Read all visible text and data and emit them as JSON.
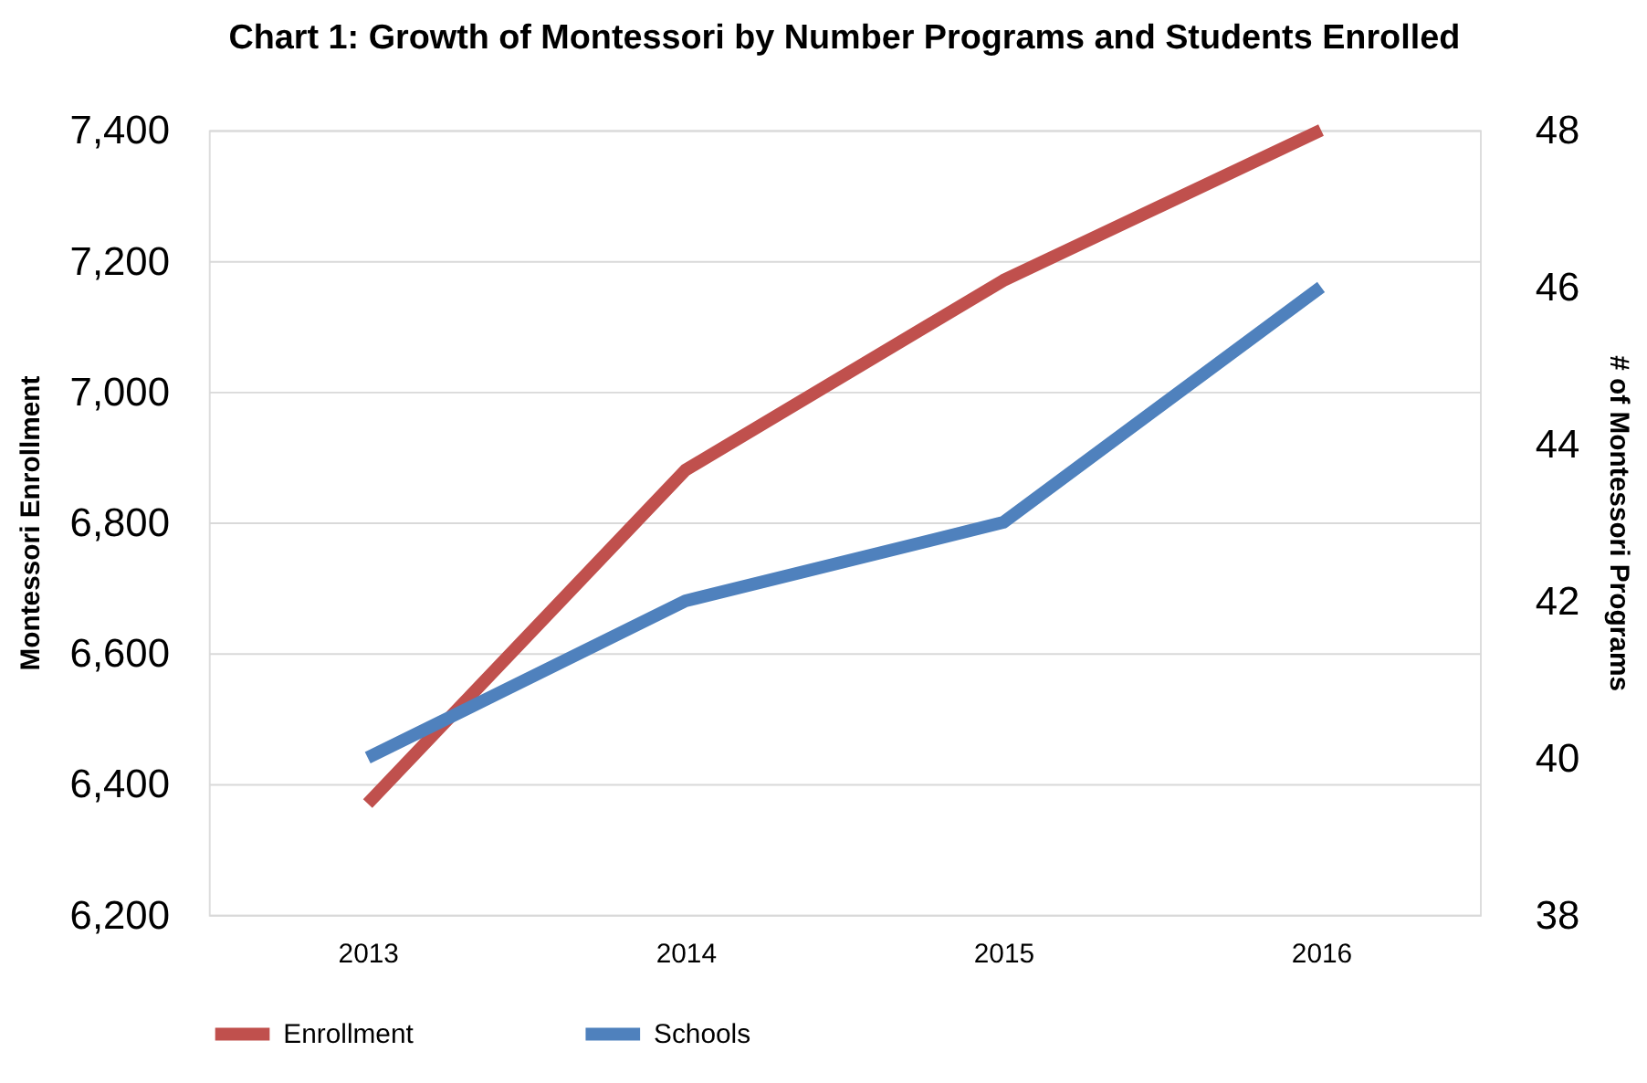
{
  "chart_data": {
    "type": "line",
    "title": "Chart 1: Growth of Montessori by Number Programs and Students Enrolled",
    "categories": [
      "2013",
      "2014",
      "2015",
      "2016"
    ],
    "series": [
      {
        "name": "Enrollment",
        "color": "#c0504d",
        "values": [
          6370,
          6880,
          7170,
          7400
        ]
      },
      {
        "name": "Schools",
        "color": "#4f81bd",
        "values": [
          40,
          42,
          43,
          46
        ],
        "axis": "y2"
      }
    ],
    "ylabel": "Montessori Enrollment",
    "y2label": "# of Montessori Programs",
    "ylim": [
      6200,
      7400
    ],
    "yticks": [
      {
        "value": 6200,
        "label": "6,200"
      },
      {
        "value": 6400,
        "label": "6,400"
      },
      {
        "value": 6600,
        "label": "6,600"
      },
      {
        "value": 6800,
        "label": "6,800"
      },
      {
        "value": 7000,
        "label": "7,000"
      },
      {
        "value": 7200,
        "label": "7,200"
      },
      {
        "value": 7400,
        "label": "7,400"
      }
    ],
    "y2lim": [
      38,
      48
    ],
    "y2ticks": [
      38,
      40,
      42,
      44,
      46,
      48
    ],
    "grid": "y",
    "legend": "bottom",
    "marker": "none",
    "line_style": "solid"
  }
}
